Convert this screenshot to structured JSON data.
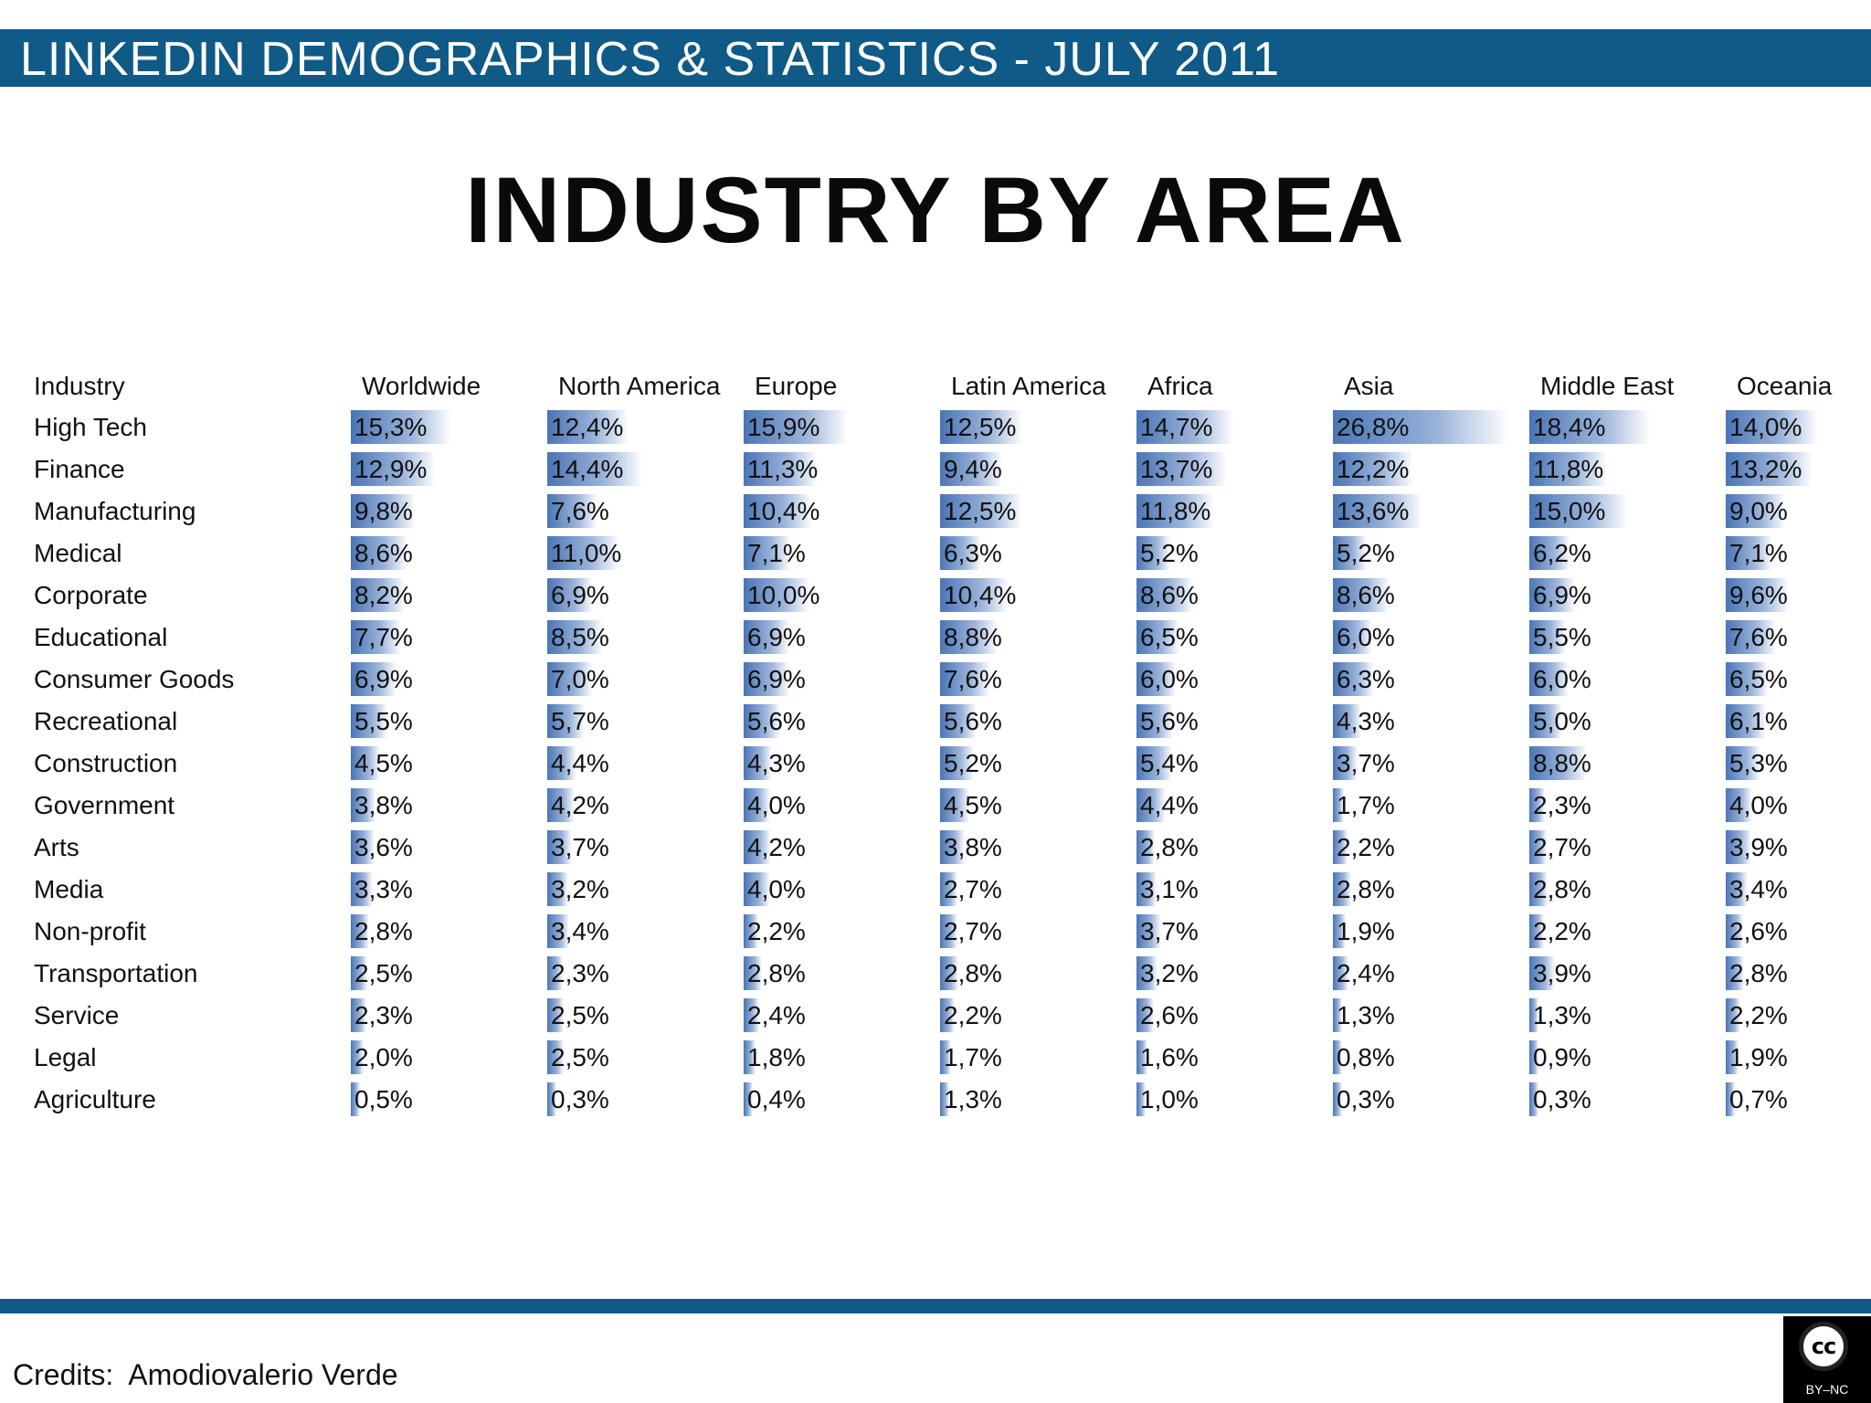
{
  "header": {
    "title": "LINKEDIN DEMOGRAPHICS & STATISTICS - JULY 2011"
  },
  "main_title": "INDUSTRY BY AREA",
  "footer": {
    "credits": "Credits:  Amodiovalerio Verde",
    "license_badge": {
      "symbol": "cc",
      "label": "BY–NC"
    }
  },
  "colors": {
    "brand_bar": "#0f5a86",
    "bar_dark": "#4a75b5",
    "bar_light": "#9bb4da"
  },
  "chart_data": {
    "type": "table",
    "row_header": "Industry",
    "columns": [
      "Worldwide",
      "North America",
      "Europe",
      "Latin America",
      "Africa",
      "Asia",
      "Middle East",
      "Oceania"
    ],
    "rows": [
      {
        "industry": "High Tech",
        "values": [
          15.3,
          12.4,
          15.9,
          12.5,
          14.7,
          26.8,
          18.4,
          14.0
        ],
        "labels": [
          "15,3%",
          "12,4%",
          "15,9%",
          "12,5%",
          "14,7%",
          "26,8%",
          "18,4%",
          "14,0%"
        ]
      },
      {
        "industry": "Finance",
        "values": [
          12.9,
          14.4,
          11.3,
          9.4,
          13.7,
          12.2,
          11.8,
          13.2
        ],
        "labels": [
          "12,9%",
          "14,4%",
          "11,3%",
          "9,4%",
          "13,7%",
          "12,2%",
          "11,8%",
          "13,2%"
        ]
      },
      {
        "industry": "Manufacturing",
        "values": [
          9.8,
          7.6,
          10.4,
          12.5,
          11.8,
          13.6,
          15.0,
          9.0
        ],
        "labels": [
          "9,8%",
          "7,6%",
          "10,4%",
          "12,5%",
          "11,8%",
          "13,6%",
          "15,0%",
          "9,0%"
        ]
      },
      {
        "industry": "Medical",
        "values": [
          8.6,
          11.0,
          7.1,
          6.3,
          5.2,
          5.2,
          6.2,
          7.1
        ],
        "labels": [
          "8,6%",
          "11,0%",
          "7,1%",
          "6,3%",
          "5,2%",
          "5,2%",
          "6,2%",
          "7,1%"
        ]
      },
      {
        "industry": "Corporate",
        "values": [
          8.2,
          6.9,
          10.0,
          10.4,
          8.6,
          8.6,
          6.9,
          9.6
        ],
        "labels": [
          "8,2%",
          "6,9%",
          "10,0%",
          "10,4%",
          "8,6%",
          "8,6%",
          "6,9%",
          "9,6%"
        ]
      },
      {
        "industry": "Educational",
        "values": [
          7.7,
          8.5,
          6.9,
          8.8,
          6.5,
          6.0,
          5.5,
          7.6
        ],
        "labels": [
          "7,7%",
          "8,5%",
          "6,9%",
          "8,8%",
          "6,5%",
          "6,0%",
          "5,5%",
          "7,6%"
        ]
      },
      {
        "industry": "Consumer Goods",
        "values": [
          6.9,
          7.0,
          6.9,
          7.6,
          6.0,
          6.3,
          6.0,
          6.5
        ],
        "labels": [
          "6,9%",
          "7,0%",
          "6,9%",
          "7,6%",
          "6,0%",
          "6,3%",
          "6,0%",
          "6,5%"
        ]
      },
      {
        "industry": "Recreational",
        "values": [
          5.5,
          5.7,
          5.6,
          5.6,
          5.6,
          4.3,
          5.0,
          6.1
        ],
        "labels": [
          "5,5%",
          "5,7%",
          "5,6%",
          "5,6%",
          "5,6%",
          "4,3%",
          "5,0%",
          "6,1%"
        ]
      },
      {
        "industry": "Construction",
        "values": [
          4.5,
          4.4,
          4.3,
          5.2,
          5.4,
          3.7,
          8.8,
          5.3
        ],
        "labels": [
          "4,5%",
          "4,4%",
          "4,3%",
          "5,2%",
          "5,4%",
          "3,7%",
          "8,8%",
          "5,3%"
        ]
      },
      {
        "industry": "Government",
        "values": [
          3.8,
          4.2,
          4.0,
          4.5,
          4.4,
          1.7,
          2.3,
          4.0
        ],
        "labels": [
          "3,8%",
          "4,2%",
          "4,0%",
          "4,5%",
          "4,4%",
          "1,7%",
          "2,3%",
          "4,0%"
        ]
      },
      {
        "industry": "Arts",
        "values": [
          3.6,
          3.7,
          4.2,
          3.8,
          2.8,
          2.2,
          2.7,
          3.9
        ],
        "labels": [
          "3,6%",
          "3,7%",
          "4,2%",
          "3,8%",
          "2,8%",
          "2,2%",
          "2,7%",
          "3,9%"
        ]
      },
      {
        "industry": "Media",
        "values": [
          3.3,
          3.2,
          4.0,
          2.7,
          3.1,
          2.8,
          2.8,
          3.4
        ],
        "labels": [
          "3,3%",
          "3,2%",
          "4,0%",
          "2,7%",
          "3,1%",
          "2,8%",
          "2,8%",
          "3,4%"
        ]
      },
      {
        "industry": "Non-profit",
        "values": [
          2.8,
          3.4,
          2.2,
          2.7,
          3.7,
          1.9,
          2.2,
          2.6
        ],
        "labels": [
          "2,8%",
          "3,4%",
          "2,2%",
          "2,7%",
          "3,7%",
          "1,9%",
          "2,2%",
          "2,6%"
        ]
      },
      {
        "industry": "Transportation",
        "values": [
          2.5,
          2.3,
          2.8,
          2.8,
          3.2,
          2.4,
          3.9,
          2.8
        ],
        "labels": [
          "2,5%",
          "2,3%",
          "2,8%",
          "2,8%",
          "3,2%",
          "2,4%",
          "3,9%",
          "2,8%"
        ]
      },
      {
        "industry": "Service",
        "values": [
          2.3,
          2.5,
          2.4,
          2.2,
          2.6,
          1.3,
          1.3,
          2.2
        ],
        "labels": [
          "2,3%",
          "2,5%",
          "2,4%",
          "2,2%",
          "2,6%",
          "1,3%",
          "1,3%",
          "2,2%"
        ]
      },
      {
        "industry": "Legal",
        "values": [
          2.0,
          2.5,
          1.8,
          1.7,
          1.6,
          0.8,
          0.9,
          1.9
        ],
        "labels": [
          "2,0%",
          "2,5%",
          "1,8%",
          "1,7%",
          "1,6%",
          "0,8%",
          "0,9%",
          "1,9%"
        ]
      },
      {
        "industry": "Agriculture",
        "values": [
          0.5,
          0.3,
          0.4,
          1.3,
          1.0,
          0.3,
          0.3,
          0.7
        ],
        "labels": [
          "0,5%",
          "0,3%",
          "0,4%",
          "1,3%",
          "1,0%",
          "0,3%",
          "0,3%",
          "0,7%"
        ]
      }
    ]
  }
}
